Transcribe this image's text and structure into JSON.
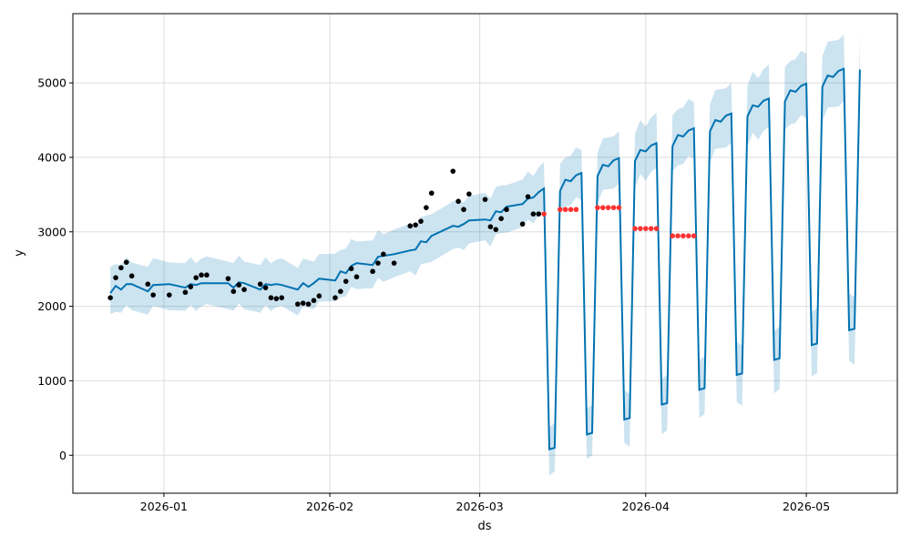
{
  "chart_data": {
    "type": "line",
    "title": "",
    "xlabel": "ds",
    "ylabel": "y",
    "x_units": "days since 2026-01-01",
    "x_range": [
      -17,
      137
    ],
    "ylim": [
      -510,
      5930
    ],
    "grid": true,
    "x_ticks": [
      {
        "day": 0,
        "label": "2026-01"
      },
      {
        "day": 31,
        "label": "2026-02"
      },
      {
        "day": 59,
        "label": "2026-03"
      },
      {
        "day": 90,
        "label": "2026-04"
      },
      {
        "day": 120,
        "label": "2026-05"
      }
    ],
    "y_ticks": [
      {
        "value": 0,
        "label": "0"
      },
      {
        "value": 1000,
        "label": "1000"
      },
      {
        "value": 2000,
        "label": "2000"
      },
      {
        "value": 3000,
        "label": "3000"
      },
      {
        "value": 4000,
        "label": "4000"
      },
      {
        "value": 5000,
        "label": "5000"
      }
    ],
    "colors": {
      "line": "#0072B2",
      "band": "#0072B2",
      "observed": "#000000",
      "future_actual": "#ff3333",
      "grid": "#dddddd"
    },
    "observed": {
      "x": [
        -10,
        -9,
        -8,
        -7,
        -6,
        -3,
        -2,
        1,
        4,
        5,
        6,
        7,
        8,
        12,
        13,
        14,
        15,
        18,
        19,
        20,
        21,
        22,
        25,
        26,
        27,
        28,
        29,
        32,
        33,
        34,
        35,
        36,
        39,
        40,
        41,
        43,
        46,
        47,
        48,
        49,
        50,
        54,
        55,
        56,
        57,
        60,
        61,
        62,
        63,
        64,
        67,
        68,
        69,
        70
      ],
      "y": [
        2115,
        2384,
        2518,
        2592,
        2408,
        2298,
        2152,
        2152,
        2188,
        2262,
        2384,
        2420,
        2420,
        2372,
        2200,
        2286,
        2225,
        2298,
        2250,
        2115,
        2103,
        2115,
        2030,
        2042,
        2030,
        2078,
        2139,
        2115,
        2200,
        2335,
        2506,
        2396,
        2469,
        2580,
        2700,
        2580,
        3080,
        3093,
        3142,
        3325,
        3520,
        3814,
        3410,
        3300,
        3508,
        3435,
        3068,
        3032,
        3178,
        3300,
        3105,
        3472,
        3240,
        3240
      ]
    },
    "future_actual": {
      "x": [
        71,
        74,
        75,
        76,
        77,
        81,
        82,
        83,
        84,
        85,
        88,
        89,
        90,
        91,
        92,
        95,
        96,
        97,
        98,
        99
      ],
      "y": [
        3240,
        3300,
        3300,
        3300,
        3300,
        3325,
        3325,
        3325,
        3325,
        3325,
        3044,
        3044,
        3044,
        3044,
        3044,
        2946,
        2946,
        2946,
        2946,
        2946
      ]
    },
    "forecast": {
      "x": [
        -10,
        -9,
        -8,
        -7,
        -6,
        -3,
        -2,
        1,
        4,
        5,
        6,
        7,
        8,
        12,
        13,
        14,
        15,
        18,
        19,
        20,
        21,
        22,
        25,
        26,
        27,
        28,
        29,
        32,
        33,
        34,
        35,
        36,
        39,
        40,
        41,
        43,
        46,
        47,
        48,
        49,
        50,
        54,
        55,
        56,
        57,
        60,
        61,
        62,
        63,
        64,
        67,
        68,
        69,
        70,
        71,
        72,
        73,
        74,
        75,
        76,
        77,
        78,
        79,
        80,
        81,
        82,
        83,
        84,
        85,
        86,
        87,
        88,
        89,
        90,
        91,
        92,
        93,
        94,
        95,
        96,
        97,
        98,
        99,
        100,
        101,
        102,
        103,
        104,
        105,
        106,
        107,
        108,
        109,
        110,
        111,
        112,
        113,
        114,
        115,
        116,
        117,
        118,
        119,
        120,
        121,
        122,
        123,
        124,
        125,
        126,
        127,
        128,
        129,
        130
      ],
      "yhat": [
        2176,
        2274,
        2225,
        2298,
        2298,
        2200,
        2286,
        2298,
        2250,
        2298,
        2286,
        2310,
        2310,
        2310,
        2250,
        2323,
        2310,
        2225,
        2298,
        2286,
        2298,
        2286,
        2225,
        2310,
        2262,
        2310,
        2372,
        2347,
        2469,
        2445,
        2543,
        2580,
        2555,
        2665,
        2677,
        2700,
        2750,
        2763,
        2873,
        2860,
        2946,
        3080,
        3068,
        3105,
        3154,
        3166,
        3154,
        3276,
        3264,
        3337,
        3374,
        3447,
        3460,
        3533,
        3582,
        80,
        100,
        3550,
        3700,
        3680,
        3760,
        3790,
        280,
        300,
        3750,
        3900,
        3880,
        3960,
        3990,
        480,
        500,
        3950,
        4100,
        4080,
        4160,
        4190,
        680,
        700,
        4150,
        4300,
        4280,
        4360,
        4390,
        880,
        900,
        4350,
        4500,
        4480,
        4560,
        4590,
        1080,
        1100,
        4550,
        4700,
        4680,
        4760,
        4790,
        1280,
        1300,
        4750,
        4900,
        4880,
        4960,
        4990,
        1480,
        1500,
        4950,
        5100,
        5080,
        5160,
        5190,
        1680,
        1700,
        5180
      ],
      "interval_halfwidth_history": 320,
      "interval_growth_per_forecast_day": 2.3
    }
  }
}
